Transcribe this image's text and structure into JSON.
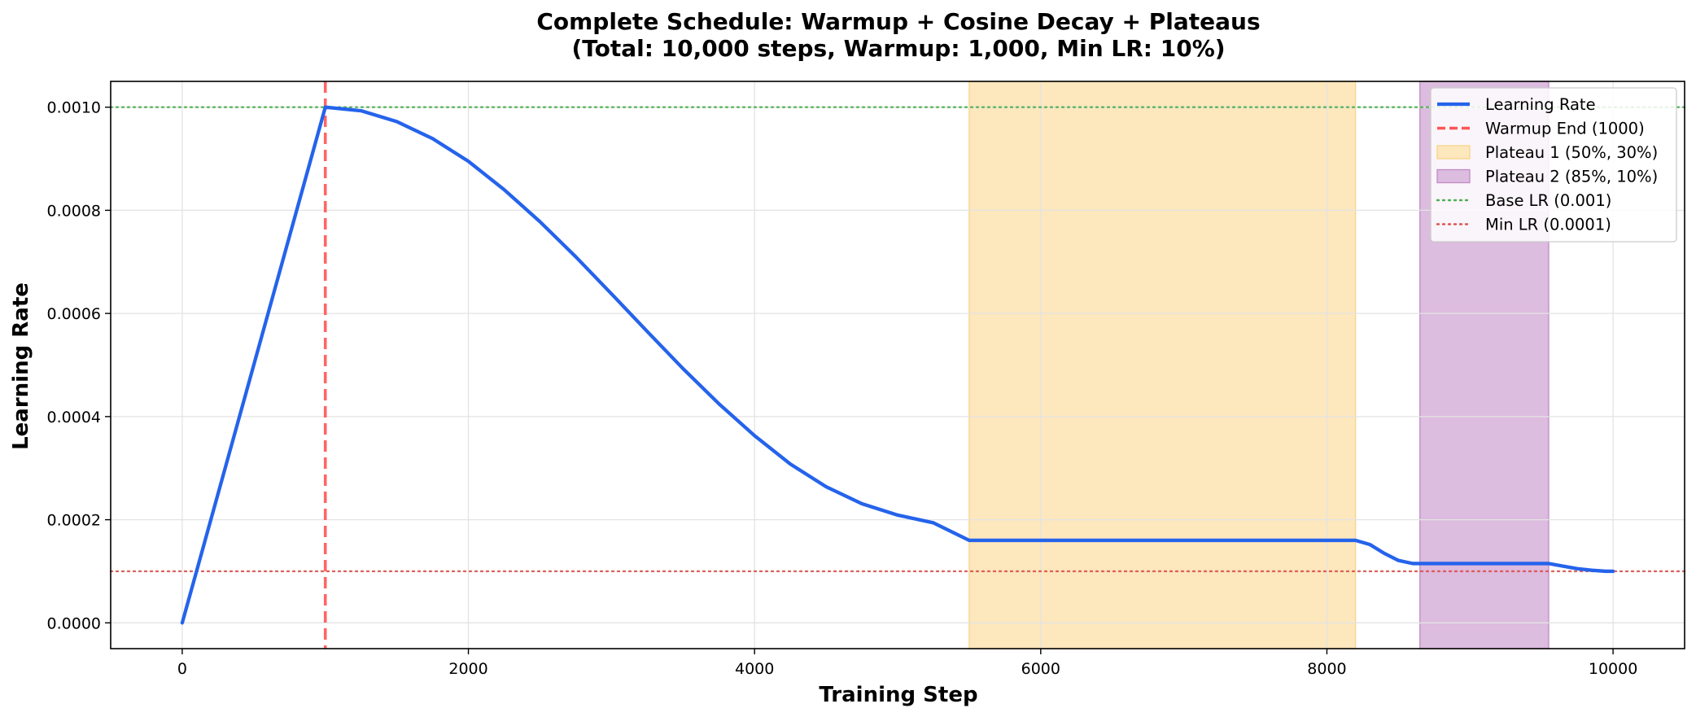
{
  "chart_data": {
    "type": "line",
    "title_line1": "Complete Schedule: Warmup + Cosine Decay + Plateaus",
    "title_line2": "(Total: 10,000 steps, Warmup: 1,000, Min LR: 10%)",
    "xlabel": "Training Step",
    "ylabel": "Learning Rate",
    "xlim": [
      -500,
      10500
    ],
    "ylim": [
      -5e-05,
      0.00105
    ],
    "xticks": [
      0,
      2000,
      4000,
      6000,
      8000,
      10000
    ],
    "xtick_labels": [
      "0",
      "2000",
      "4000",
      "6000",
      "8000",
      "10000"
    ],
    "yticks": [
      0,
      0.0002,
      0.0004,
      0.0006,
      0.0008,
      0.001
    ],
    "ytick_labels": [
      "0.0000",
      "0.0002",
      "0.0004",
      "0.0006",
      "0.0008",
      "0.0010"
    ],
    "grid": true,
    "legend_position": "top-right",
    "series": [
      {
        "name": "Learning Rate",
        "color": "#2563eb",
        "x": [
          0,
          1000,
          1250,
          1500,
          1750,
          2000,
          2250,
          2500,
          2750,
          3000,
          3250,
          3500,
          3750,
          4000,
          4250,
          4500,
          4750,
          5000,
          5250,
          5500,
          6000,
          6500,
          7000,
          7500,
          8000,
          8200,
          8300,
          8400,
          8500,
          8600,
          8650,
          9000,
          9400,
          9550,
          9650,
          9750,
          9850,
          9950,
          10000
        ],
        "y": [
          0,
          0.001,
          0.000993,
          0.000972,
          0.000939,
          0.000895,
          0.00084,
          0.000778,
          0.00071,
          0.000638,
          0.000565,
          0.000493,
          0.000425,
          0.000363,
          0.000308,
          0.000264,
          0.000231,
          0.000209,
          0.000194,
          0.00016,
          0.00016,
          0.00016,
          0.00016,
          0.00016,
          0.00016,
          0.00016,
          0.000152,
          0.000135,
          0.000121,
          0.000115,
          0.000115,
          0.000115,
          0.000115,
          0.000115,
          0.00011,
          0.000105,
          0.000102,
          0.0001,
          0.0001
        ]
      }
    ],
    "reference_lines": [
      {
        "name": "Warmup End (1000)",
        "orientation": "vertical",
        "value": 1000,
        "color": "#ff5555",
        "style": "dashed"
      },
      {
        "name": "Base LR (0.001)",
        "orientation": "horizontal",
        "value": 0.001,
        "color": "#4caf50",
        "style": "dotted"
      },
      {
        "name": "Min LR (0.0001)",
        "orientation": "horizontal",
        "value": 0.0001,
        "color": "#d9534f",
        "style": "dotted"
      }
    ],
    "spans": [
      {
        "name": "Plateau 1 (50%, 30%)",
        "x0": 5500,
        "x1": 8200,
        "color": "#fde7bd",
        "edge": "#f8d48a"
      },
      {
        "name": "Plateau 2 (85%, 10%)",
        "x0": 8650,
        "x1": 9550,
        "color": "#dcbcdf",
        "edge": "#c28ac6"
      }
    ]
  }
}
